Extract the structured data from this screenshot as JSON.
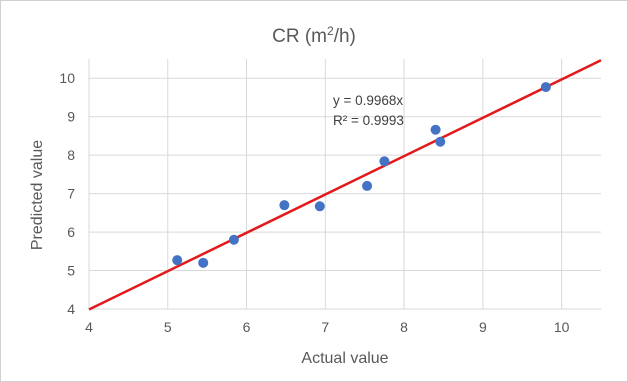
{
  "chart_data": {
    "type": "scatter",
    "title_main": "CR (m",
    "title_sup": "2",
    "title_end": "/h)",
    "xlabel": "Actual value",
    "ylabel": "Predicted value",
    "xlim": [
      4,
      10.5
    ],
    "ylim": [
      4,
      10.5
    ],
    "xticks": [
      "4",
      "5",
      "6",
      "7",
      "8",
      "9",
      "10"
    ],
    "yticks": [
      "4",
      "5",
      "6",
      "7",
      "8",
      "9",
      "10"
    ],
    "grid": true,
    "points": [
      {
        "x": 5.12,
        "y": 5.27
      },
      {
        "x": 5.45,
        "y": 5.2
      },
      {
        "x": 5.84,
        "y": 5.8
      },
      {
        "x": 6.48,
        "y": 6.7
      },
      {
        "x": 6.93,
        "y": 6.67
      },
      {
        "x": 7.53,
        "y": 7.2
      },
      {
        "x": 7.75,
        "y": 7.84
      },
      {
        "x": 8.4,
        "y": 8.66
      },
      {
        "x": 8.46,
        "y": 8.35
      },
      {
        "x": 9.8,
        "y": 9.77
      }
    ],
    "trendline": {
      "slope": 0.9968,
      "intercept": 0,
      "x": [
        4,
        10.5
      ]
    },
    "annotation_line1": "y = 0.9968x",
    "annotation_line2": "R² = 0.9993",
    "colors": {
      "points": "#4472c4",
      "trendline": "#e31a1c",
      "grid": "#d9d9d9"
    }
  }
}
